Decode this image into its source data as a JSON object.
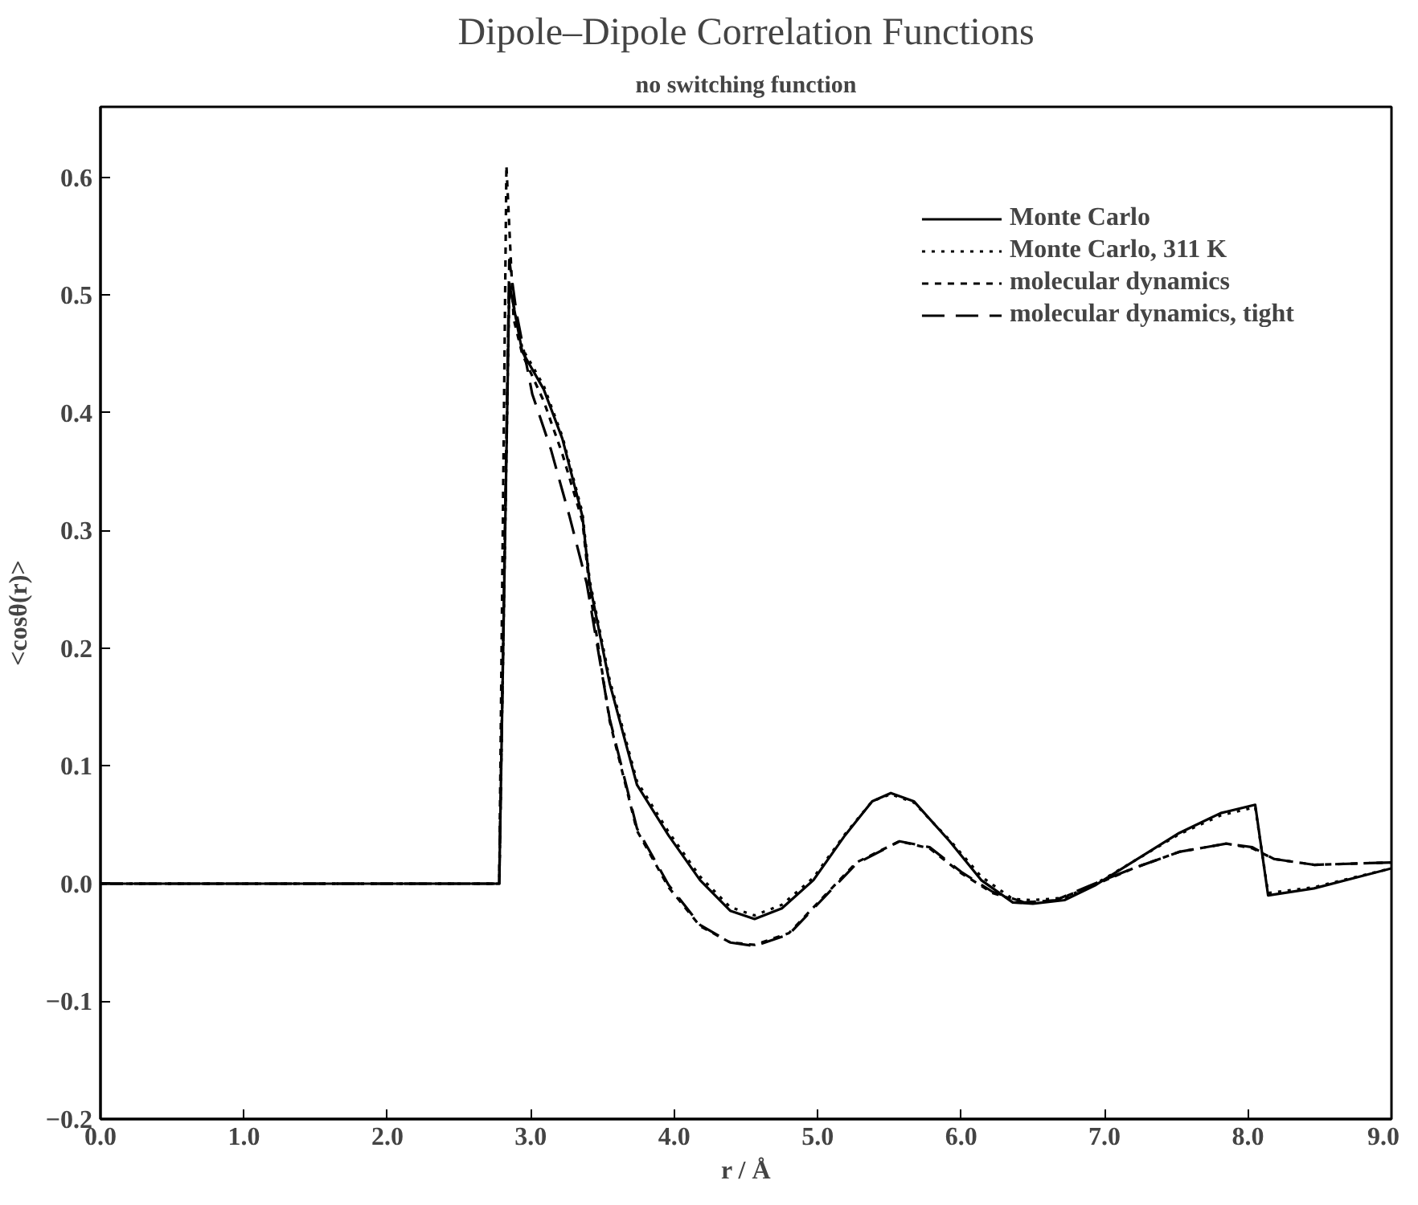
{
  "chart_data": {
    "type": "line",
    "title": "Dipole–Dipole Correlation Functions",
    "subtitle": "no switching function",
    "xlabel": "r / Å",
    "ylabel": "<cosθ(r)>",
    "xlim": [
      0,
      9
    ],
    "ylim": [
      -0.2,
      0.66
    ],
    "xticks": [
      {
        "value": 0,
        "label": "0.0"
      },
      {
        "value": 1,
        "label": "1.0"
      },
      {
        "value": 2,
        "label": "2.0"
      },
      {
        "value": 3,
        "label": "3.0"
      },
      {
        "value": 4,
        "label": "4.0"
      },
      {
        "value": 5,
        "label": "5.0"
      },
      {
        "value": 6,
        "label": "6.0"
      },
      {
        "value": 7,
        "label": "7.0"
      },
      {
        "value": 8,
        "label": "8.0"
      },
      {
        "value": 9,
        "label": "9.0"
      }
    ],
    "yticks": [
      {
        "value": -0.2,
        "label": "−0.2"
      },
      {
        "value": -0.1,
        "label": "−0.1"
      },
      {
        "value": 0,
        "label": "0.0"
      },
      {
        "value": 0.1,
        "label": "0.1"
      },
      {
        "value": 0.2,
        "label": "0.2"
      },
      {
        "value": 0.3,
        "label": "0.3"
      },
      {
        "value": 0.4,
        "label": "0.4"
      },
      {
        "value": 0.5,
        "label": "0.5"
      },
      {
        "value": 0.6,
        "label": "0.6"
      }
    ],
    "grid": false,
    "legend": "top right",
    "marker": "none",
    "series": [
      {
        "name": "Monte Carlo",
        "color": "#000000",
        "line_style": "solid",
        "x": [
          0,
          2.78,
          2.85,
          2.94,
          3.09,
          3.22,
          3.36,
          3.41,
          3.55,
          3.74,
          3.96,
          4.18,
          4.39,
          4.56,
          4.75,
          4.97,
          5.19,
          5.38,
          5.51,
          5.67,
          5.92,
          6.14,
          6.36,
          6.5,
          6.72,
          6.94,
          7.23,
          7.52,
          7.81,
          8.05,
          8.14,
          8.46,
          9.0
        ],
        "values": [
          0,
          0,
          0.51,
          0.452,
          0.42,
          0.378,
          0.312,
          0.255,
          0.17,
          0.084,
          0.041,
          0.003,
          -0.023,
          -0.03,
          -0.021,
          0.003,
          0.041,
          0.07,
          0.077,
          0.07,
          0.036,
          0.003,
          -0.016,
          -0.017,
          -0.014,
          -0.001,
          0.021,
          0.043,
          0.06,
          0.067,
          -0.01,
          -0.004,
          0.013
        ]
      },
      {
        "name": "Monte Carlo, 311 K",
        "color": "#000000",
        "line_style": "dotted",
        "x": [
          0,
          2.78,
          2.85,
          2.94,
          3.09,
          3.22,
          3.36,
          3.41,
          3.55,
          3.74,
          3.96,
          4.18,
          4.39,
          4.56,
          4.75,
          4.97,
          5.19,
          5.38,
          5.51,
          5.67,
          5.92,
          6.14,
          6.36,
          6.5,
          6.72,
          6.94,
          7.23,
          7.52,
          7.81,
          8.05,
          8.14,
          8.46,
          9.0
        ],
        "values": [
          0,
          0,
          0.51,
          0.455,
          0.423,
          0.38,
          0.315,
          0.258,
          0.173,
          0.087,
          0.044,
          0.006,
          -0.02,
          -0.027,
          -0.018,
          0.005,
          0.042,
          0.07,
          0.076,
          0.069,
          0.037,
          0.006,
          -0.013,
          -0.014,
          -0.012,
          0.0,
          0.021,
          0.042,
          0.058,
          0.065,
          -0.008,
          -0.003,
          0.013
        ]
      },
      {
        "name": "molecular dynamics",
        "color": "#000000",
        "line_style": "dashed",
        "x": [
          0,
          2.78,
          2.83,
          2.88,
          2.94,
          3.09,
          3.22,
          3.36,
          3.41,
          3.55,
          3.74,
          3.96,
          4.18,
          4.39,
          4.56,
          4.8,
          5.05,
          5.27,
          5.57,
          5.78,
          6.0,
          6.22,
          6.44,
          6.66,
          6.91,
          7.2,
          7.52,
          7.85,
          8.03,
          8.18,
          8.46,
          9.0
        ],
        "values": [
          0,
          0,
          0.61,
          0.48,
          0.45,
          0.41,
          0.365,
          0.308,
          0.25,
          0.138,
          0.045,
          -0.003,
          -0.036,
          -0.05,
          -0.052,
          -0.042,
          -0.01,
          0.018,
          0.036,
          0.03,
          0.009,
          -0.008,
          -0.016,
          -0.014,
          -0.002,
          0.013,
          0.027,
          0.034,
          0.03,
          0.021,
          0.016,
          0.018
        ]
      },
      {
        "name": "molecular dynamics, tight",
        "color": "#000000",
        "line_style": "longdash",
        "x": [
          0,
          2.78,
          2.85,
          2.9,
          3.01,
          3.14,
          3.27,
          3.39,
          3.55,
          3.74,
          3.96,
          4.18,
          4.39,
          4.56,
          4.8,
          5.05,
          5.27,
          5.57,
          5.78,
          6.0,
          6.22,
          6.44,
          6.66,
          6.91,
          7.2,
          7.52,
          7.85,
          8.03,
          8.18,
          8.46,
          9.0
        ],
        "values": [
          0,
          0,
          0.53,
          0.485,
          0.416,
          0.369,
          0.312,
          0.255,
          0.14,
          0.047,
          -0.001,
          -0.035,
          -0.05,
          -0.053,
          -0.043,
          -0.011,
          0.017,
          0.036,
          0.031,
          0.01,
          -0.007,
          -0.016,
          -0.014,
          -0.001,
          0.013,
          0.027,
          0.034,
          0.031,
          0.021,
          0.016,
          0.018
        ]
      }
    ]
  }
}
